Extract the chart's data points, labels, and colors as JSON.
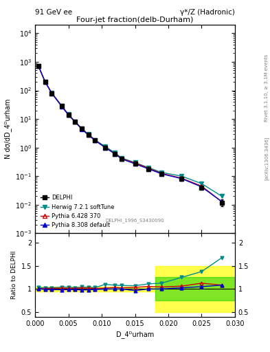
{
  "title_top_left": "91 GeV ee",
  "title_top_right": "γ*/Z (Hadronic)",
  "main_title": "Four-jet fraction(delb-Durham)",
  "right_label": "Rivet 3.1.10, ≥ 3.1M events",
  "arxiv_label": "[arXiv:1306.3436]",
  "dataset_label": "DELPHI_1996_S3430090",
  "xlabel": "D_4ᴰurham",
  "ylabel_main": "N dσ/dD_4ᴰurham",
  "ylabel_ratio": "Ratio to DELPHI",
  "xlim": [
    0,
    0.03
  ],
  "ylim_main": [
    0.001,
    20000.0
  ],
  "ylim_ratio": [
    0.4,
    2.2
  ],
  "delphi_x": [
    0.0005,
    0.0015,
    0.0025,
    0.004,
    0.005,
    0.006,
    0.007,
    0.008,
    0.009,
    0.0105,
    0.012,
    0.013,
    0.015,
    0.017,
    0.019,
    0.022,
    0.025,
    0.028
  ],
  "delphi_y": [
    700,
    200,
    80,
    28,
    14,
    8,
    4.5,
    2.8,
    1.8,
    1.0,
    0.6,
    0.4,
    0.28,
    0.18,
    0.12,
    0.08,
    0.04,
    0.012
  ],
  "delphi_yerr": [
    30,
    10,
    5,
    2,
    1,
    0.5,
    0.3,
    0.2,
    0.15,
    0.1,
    0.05,
    0.04,
    0.03,
    0.02,
    0.015,
    0.01,
    0.006,
    0.003
  ],
  "herwig_x": [
    0.0005,
    0.0015,
    0.0025,
    0.004,
    0.005,
    0.006,
    0.007,
    0.008,
    0.009,
    0.0105,
    0.012,
    0.013,
    0.015,
    0.017,
    0.019,
    0.022,
    0.025,
    0.028
  ],
  "herwig_y": [
    720,
    205,
    82,
    29,
    14.5,
    8.2,
    4.7,
    2.9,
    1.85,
    1.1,
    0.65,
    0.43,
    0.3,
    0.2,
    0.135,
    0.1,
    0.055,
    0.02
  ],
  "herwig_color": "#008B8B",
  "pythia6_x": [
    0.0005,
    0.0015,
    0.0025,
    0.004,
    0.005,
    0.006,
    0.007,
    0.008,
    0.009,
    0.0105,
    0.012,
    0.013,
    0.015,
    0.017,
    0.019,
    0.022,
    0.025,
    0.028
  ],
  "pythia6_y": [
    710,
    202,
    81,
    28.5,
    14.2,
    8.1,
    4.6,
    2.85,
    1.82,
    1.02,
    0.62,
    0.41,
    0.29,
    0.19,
    0.125,
    0.085,
    0.045,
    0.013
  ],
  "pythia6_color": "#CC0000",
  "pythia8_x": [
    0.0005,
    0.0015,
    0.0025,
    0.004,
    0.005,
    0.006,
    0.007,
    0.008,
    0.009,
    0.0105,
    0.012,
    0.013,
    0.015,
    0.017,
    0.019,
    0.022,
    0.025,
    0.028
  ],
  "pythia8_y": [
    705,
    198,
    79,
    27.5,
    13.8,
    7.9,
    4.4,
    2.75,
    1.78,
    1.0,
    0.6,
    0.4,
    0.27,
    0.18,
    0.12,
    0.082,
    0.042,
    0.013
  ],
  "pythia8_color": "#0000CC",
  "ratio_herwig": [
    1.03,
    1.025,
    1.025,
    1.04,
    1.04,
    1.025,
    1.044,
    1.036,
    1.028,
    1.1,
    1.08,
    1.075,
    1.07,
    1.11,
    1.125,
    1.25,
    1.375,
    1.67
  ],
  "ratio_pythia6": [
    1.01,
    1.01,
    1.012,
    1.018,
    1.014,
    1.012,
    1.022,
    1.018,
    1.011,
    1.02,
    1.033,
    1.025,
    1.035,
    1.055,
    1.042,
    1.062,
    1.125,
    1.083
  ],
  "ratio_pythia8": [
    1.007,
    0.99,
    0.9875,
    0.982,
    0.986,
    0.9875,
    0.978,
    0.982,
    0.989,
    1.0,
    1.0,
    1.0,
    0.964,
    1.0,
    1.0,
    1.025,
    1.05,
    1.083
  ],
  "green_band_x": [
    0.0,
    0.001,
    0.002,
    0.003,
    0.006,
    0.009,
    0.012,
    0.015,
    0.018,
    0.021,
    0.024,
    0.027,
    0.03
  ],
  "green_band_upper": [
    1.0,
    1.0,
    1.0,
    1.0,
    1.0,
    1.0,
    1.0,
    1.0,
    1.25,
    1.25,
    1.25,
    1.25,
    1.25
  ],
  "green_band_lower": [
    1.0,
    1.0,
    1.0,
    1.0,
    1.0,
    1.0,
    1.0,
    1.0,
    0.75,
    0.75,
    0.75,
    0.75,
    0.75
  ],
  "yellow_band_x": [
    0.0,
    0.001,
    0.002,
    0.003,
    0.006,
    0.009,
    0.012,
    0.015,
    0.018,
    0.021,
    0.024,
    0.027,
    0.03
  ],
  "yellow_band_upper": [
    1.05,
    1.05,
    1.05,
    1.05,
    1.05,
    1.05,
    1.05,
    1.05,
    1.5,
    1.5,
    1.5,
    1.5,
    1.5
  ],
  "yellow_band_lower": [
    0.95,
    0.95,
    0.95,
    0.95,
    0.95,
    0.95,
    0.95,
    0.95,
    0.5,
    0.5,
    0.5,
    0.5,
    0.5
  ]
}
